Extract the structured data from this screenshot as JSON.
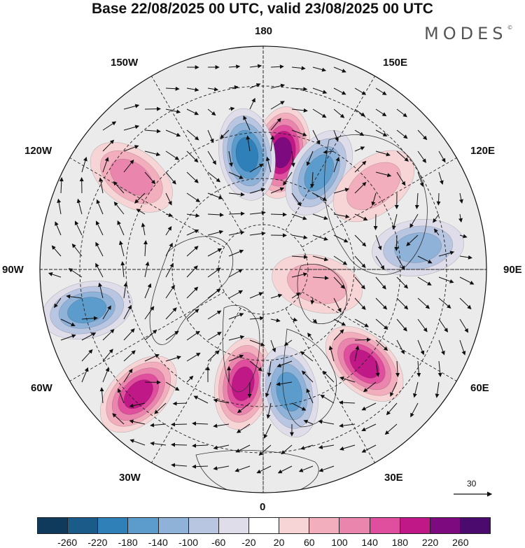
{
  "title": "Base 22/08/2025 00 UTC, valid 23/08/2025 00 UTC",
  "brand": "MODES",
  "brand_mark": "©",
  "longitude_labels": {
    "top": "180",
    "bottom": "0",
    "left": "90W",
    "right": "90E",
    "upper_left": "150W",
    "upper_right": "150E",
    "mid_upper_left": "120W",
    "mid_upper_right": "120E",
    "mid_lower_left": "60W",
    "mid_lower_right": "60E",
    "lower_left": "30W",
    "lower_right": "30E"
  },
  "vector_reference": {
    "label": "30"
  },
  "colorbar": {
    "ticks": [
      "-260",
      "-220",
      "-180",
      "-140",
      "-100",
      "-60",
      "-20",
      "20",
      "60",
      "100",
      "140",
      "180",
      "220",
      "260"
    ],
    "colors": [
      "#0f3a5c",
      "#1a5b8a",
      "#2f80b9",
      "#5b9ccc",
      "#8fb2d9",
      "#b9c6e2",
      "#dedde9",
      "#ffffff",
      "#f7d5d6",
      "#f2aebd",
      "#ea86ad",
      "#e04f9d",
      "#c01886",
      "#7d0a7f",
      "#4b0a6e"
    ]
  },
  "anomaly_centers": [
    {
      "lon": 171,
      "lat_frac": 0.53,
      "value": 220
    },
    {
      "lon": -172,
      "lat_frac": 0.52,
      "value": -180
    },
    {
      "lon": 150,
      "lat_frac": 0.5,
      "value": -140
    },
    {
      "lon": 127,
      "lat_frac": 0.62,
      "value": 60
    },
    {
      "lon": -125,
      "lat_frac": 0.72,
      "value": 100
    },
    {
      "lon": -77,
      "lat_frac": 0.81,
      "value": -140
    },
    {
      "lon": -45,
      "lat_frac": 0.79,
      "value": 180
    },
    {
      "lon": -10,
      "lat_frac": 0.52,
      "value": 180
    },
    {
      "lon": 12,
      "lat_frac": 0.56,
      "value": -140
    },
    {
      "lon": 47,
      "lat_frac": 0.62,
      "value": 180
    },
    {
      "lon": 98,
      "lat_frac": 0.7,
      "value": -100
    },
    {
      "lon": 75,
      "lat_frac": 0.25,
      "value": 60
    }
  ]
}
